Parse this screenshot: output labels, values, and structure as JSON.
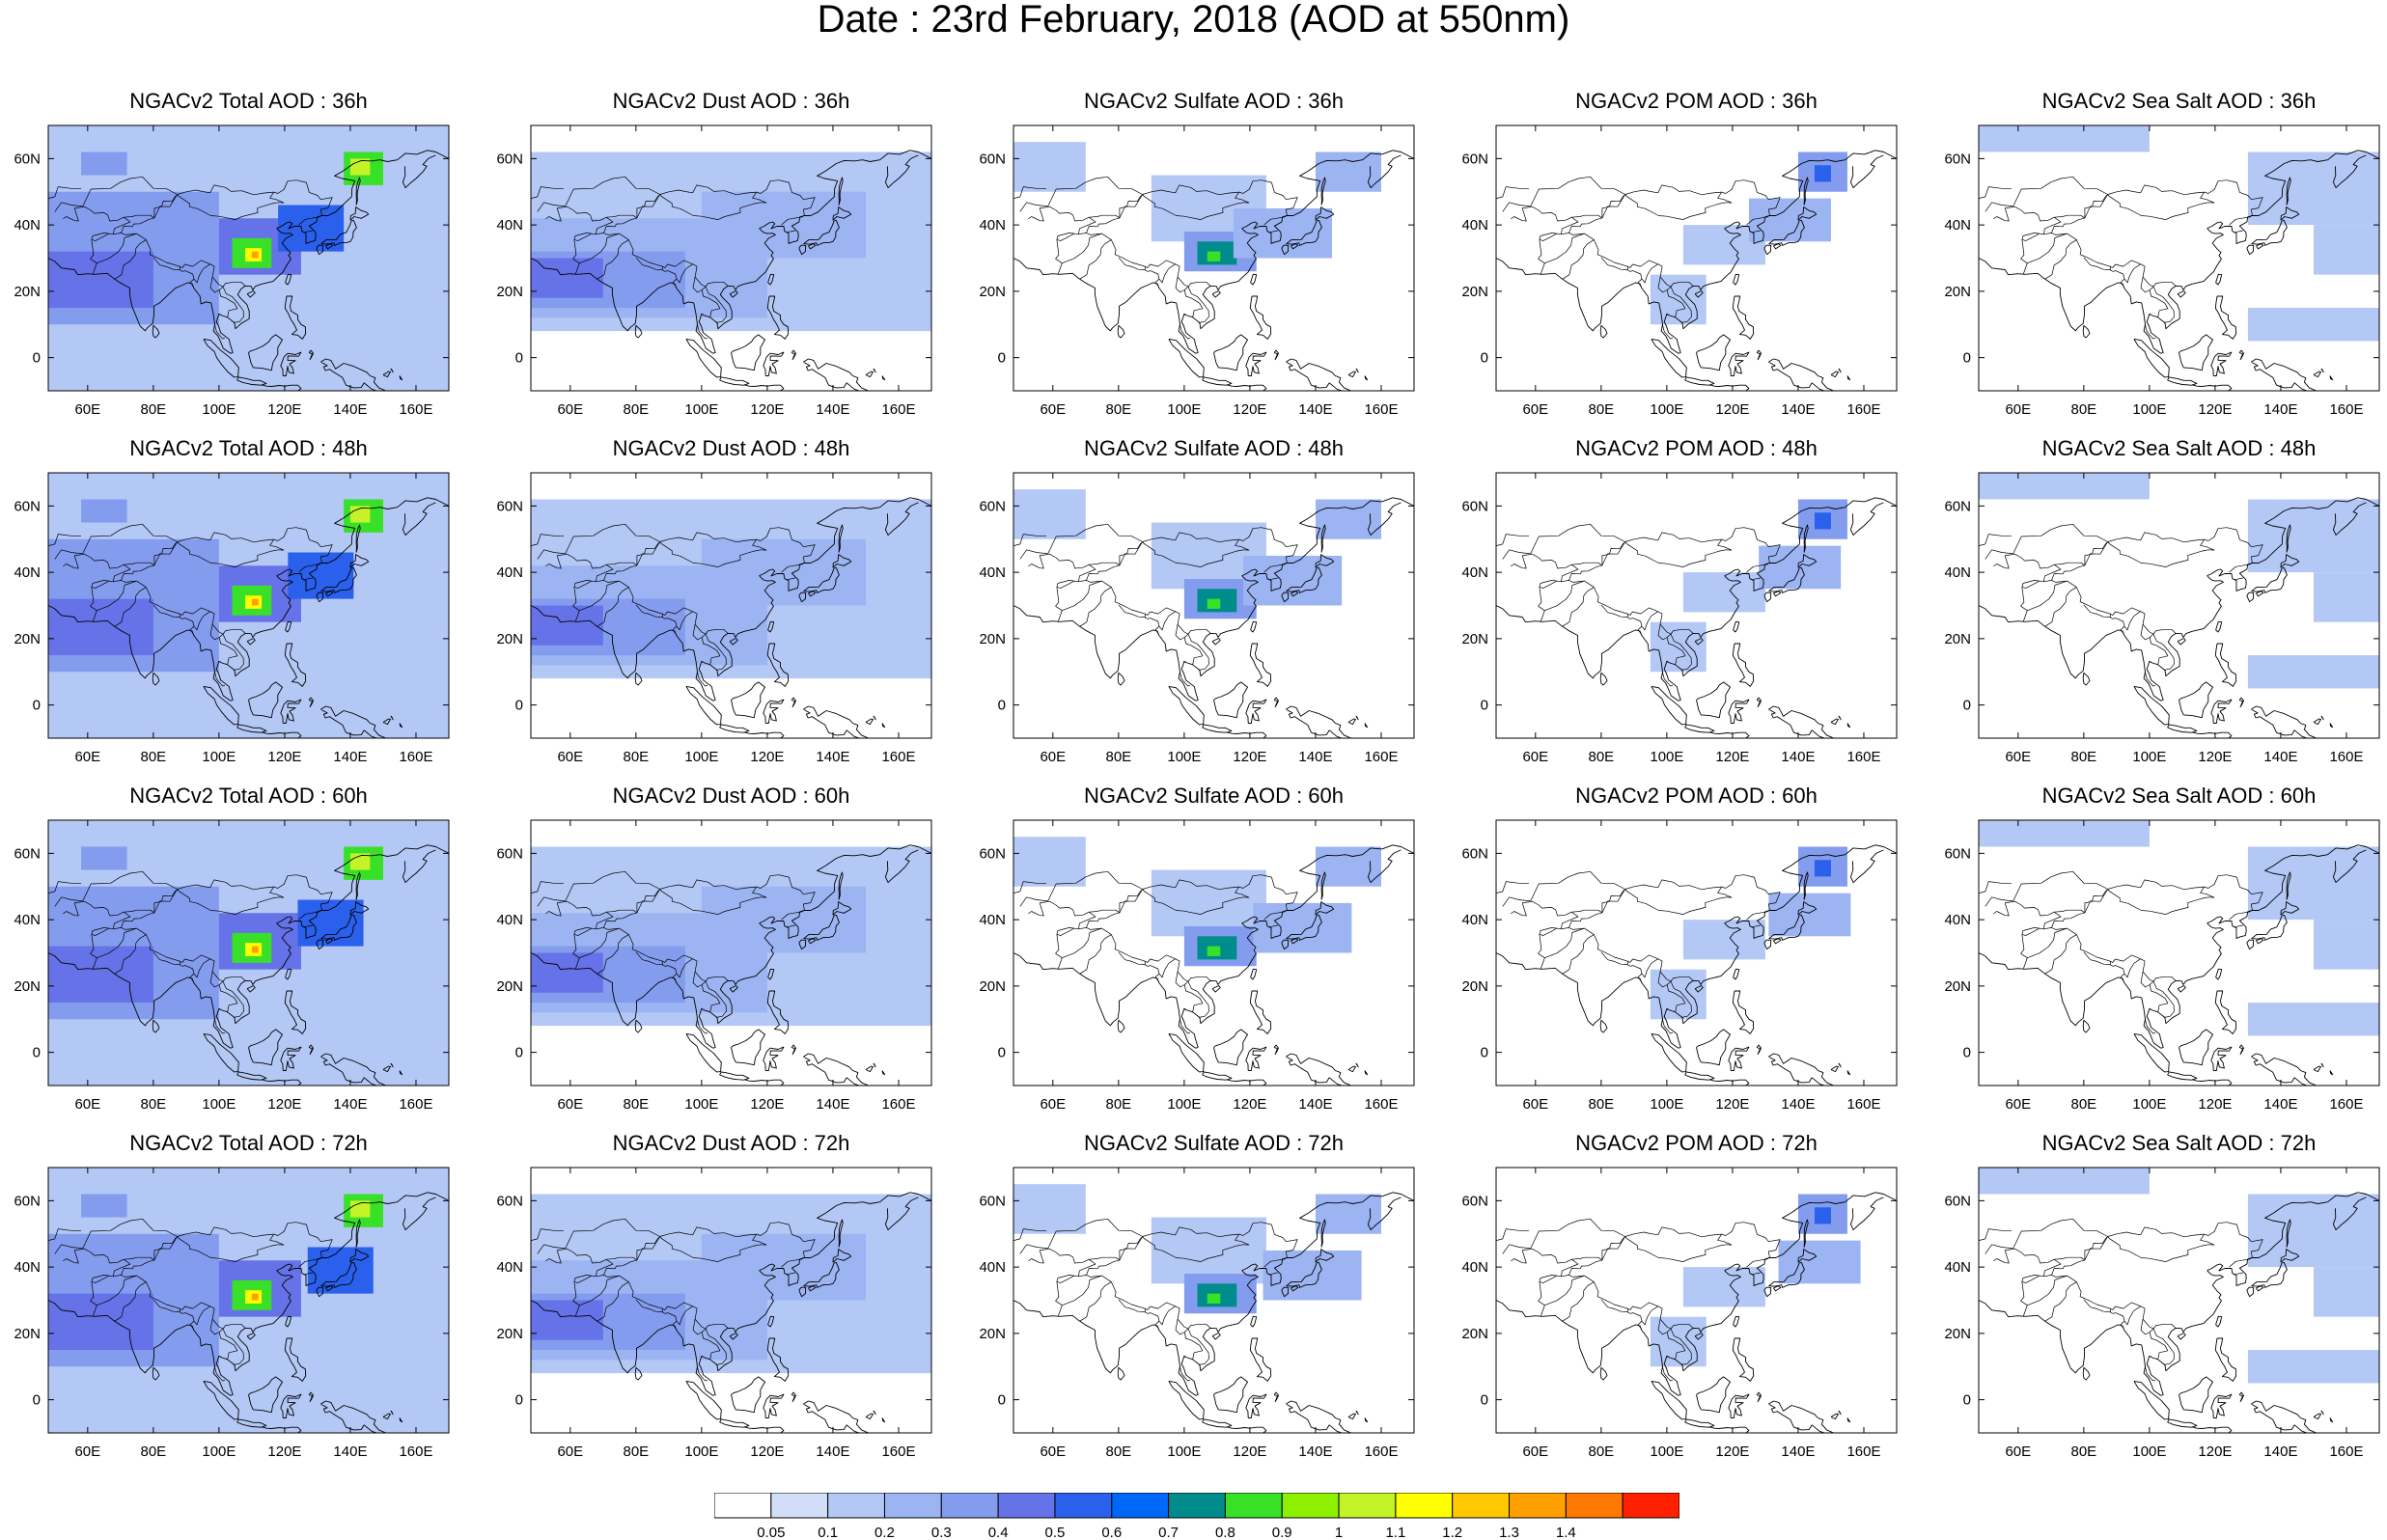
{
  "title": "Date : 23rd February, 2018 (AOD at 550nm)",
  "panels": [
    {
      "title": "NGACv2 Total AOD : 36h",
      "kind": "total",
      "hour": "36h"
    },
    {
      "title": "NGACv2 Dust AOD : 36h",
      "kind": "dust",
      "hour": "36h"
    },
    {
      "title": "NGACv2 Sulfate AOD : 36h",
      "kind": "sulfate",
      "hour": "36h"
    },
    {
      "title": "NGACv2 POM AOD : 36h",
      "kind": "pom",
      "hour": "36h"
    },
    {
      "title": "NGACv2 Sea Salt AOD : 36h",
      "kind": "seasalt",
      "hour": "36h"
    },
    {
      "title": "NGACv2 Total AOD : 48h",
      "kind": "total",
      "hour": "48h"
    },
    {
      "title": "NGACv2 Dust AOD : 48h",
      "kind": "dust",
      "hour": "48h"
    },
    {
      "title": "NGACv2 Sulfate AOD : 48h",
      "kind": "sulfate",
      "hour": "48h"
    },
    {
      "title": "NGACv2 POM AOD : 48h",
      "kind": "pom",
      "hour": "48h"
    },
    {
      "title": "NGACv2 Sea Salt AOD : 48h",
      "kind": "seasalt",
      "hour": "48h"
    },
    {
      "title": "NGACv2 Total AOD : 60h",
      "kind": "total",
      "hour": "60h"
    },
    {
      "title": "NGACv2 Dust AOD : 60h",
      "kind": "dust",
      "hour": "60h"
    },
    {
      "title": "NGACv2 Sulfate AOD : 60h",
      "kind": "sulfate",
      "hour": "60h"
    },
    {
      "title": "NGACv2 POM AOD : 60h",
      "kind": "pom",
      "hour": "60h"
    },
    {
      "title": "NGACv2 Sea Salt AOD : 60h",
      "kind": "seasalt",
      "hour": "60h"
    },
    {
      "title": "NGACv2 Total AOD : 72h",
      "kind": "total",
      "hour": "72h"
    },
    {
      "title": "NGACv2 Dust AOD : 72h",
      "kind": "dust",
      "hour": "72h"
    },
    {
      "title": "NGACv2 Sulfate AOD : 72h",
      "kind": "sulfate",
      "hour": "72h"
    },
    {
      "title": "NGACv2 POM AOD : 72h",
      "kind": "pom",
      "hour": "72h"
    },
    {
      "title": "NGACv2 Sea Salt  AOD : 72h",
      "kind": "seasalt",
      "hour": "72h"
    }
  ],
  "axes": {
    "lon_range": [
      48,
      170
    ],
    "lat_range": [
      -10,
      70
    ],
    "lon_ticks": [
      60,
      80,
      100,
      120,
      140,
      160
    ],
    "lon_tick_labels": [
      "60E",
      "80E",
      "100E",
      "120E",
      "140E",
      "160E"
    ],
    "lat_ticks": [
      0,
      20,
      40,
      60
    ],
    "lat_tick_labels": [
      "0",
      "20N",
      "40N",
      "60N"
    ]
  },
  "colorbar": {
    "labels": [
      "0.05",
      "0.1",
      "0.2",
      "0.3",
      "0.4",
      "0.5",
      "0.6",
      "0.7",
      "0.8",
      "0.9",
      "1",
      "1.1",
      "1.2",
      "1.3",
      "1.4"
    ],
    "colors": [
      "#ffffff",
      "#d2def8",
      "#b4c8f6",
      "#9cb4f2",
      "#849cee",
      "#6672e8",
      "#2a60ec",
      "#0068f8",
      "#008c8c",
      "#38e028",
      "#8cf000",
      "#c4f428",
      "#ffff00",
      "#ffc800",
      "#ffa000",
      "#ff7800",
      "#ff2000"
    ]
  }
}
